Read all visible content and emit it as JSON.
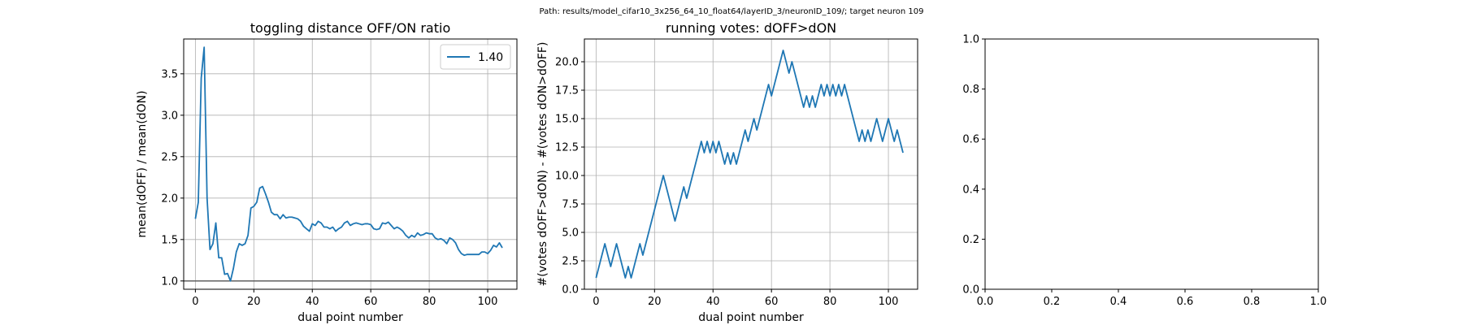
{
  "figure": {
    "suptitle": "Path: results/model_cifar10_3x256_64_10_float64/layerID_3/neuronID_109/; target neuron 109"
  },
  "chart_data": [
    {
      "type": "line",
      "title": "toggling distance OFF/ON ratio",
      "xlabel": "dual point number",
      "ylabel": "mean(dOFF) / mean(dON)",
      "xlim": [
        -4,
        110
      ],
      "ylim": [
        0.9,
        3.92
      ],
      "xticks": [
        0,
        20,
        40,
        60,
        80,
        100
      ],
      "xtick_labels": [
        "0",
        "20",
        "40",
        "60",
        "80",
        "100"
      ],
      "yticks": [
        1.0,
        1.5,
        2.0,
        2.5,
        3.0,
        3.5
      ],
      "ytick_labels": [
        "1.0",
        "1.5",
        "2.0",
        "2.5",
        "3.0",
        "3.5"
      ],
      "grid": true,
      "legend": "top-right",
      "hline": 1.0,
      "series": [
        {
          "name": "1.40",
          "color": "#1f77b4",
          "x": [
            0,
            1,
            2,
            3,
            4,
            5,
            6,
            7,
            8,
            9,
            10,
            11,
            12,
            13,
            14,
            15,
            16,
            17,
            18,
            19,
            20,
            21,
            22,
            23,
            24,
            25,
            26,
            27,
            28,
            29,
            30,
            31,
            32,
            33,
            34,
            35,
            36,
            37,
            38,
            39,
            40,
            41,
            42,
            43,
            44,
            45,
            46,
            47,
            48,
            49,
            50,
            51,
            52,
            53,
            54,
            55,
            56,
            57,
            58,
            59,
            60,
            61,
            62,
            63,
            64,
            65,
            66,
            67,
            68,
            69,
            70,
            71,
            72,
            73,
            74,
            75,
            76,
            77,
            78,
            79,
            80,
            81,
            82,
            83,
            84,
            85,
            86,
            87,
            88,
            89,
            90,
            91,
            92,
            93,
            94,
            95,
            96,
            97,
            98,
            99,
            100,
            101,
            102,
            103,
            104,
            105
          ],
          "values": [
            1.75,
            1.95,
            3.45,
            3.82,
            2.0,
            1.38,
            1.45,
            1.7,
            1.28,
            1.28,
            1.08,
            1.09,
            1.0,
            1.15,
            1.35,
            1.45,
            1.43,
            1.45,
            1.55,
            1.88,
            1.9,
            1.95,
            2.12,
            2.14,
            2.05,
            1.95,
            1.83,
            1.8,
            1.8,
            1.75,
            1.8,
            1.76,
            1.77,
            1.77,
            1.76,
            1.75,
            1.72,
            1.66,
            1.63,
            1.6,
            1.69,
            1.67,
            1.72,
            1.7,
            1.65,
            1.65,
            1.63,
            1.65,
            1.6,
            1.63,
            1.65,
            1.7,
            1.72,
            1.67,
            1.69,
            1.7,
            1.69,
            1.68,
            1.69,
            1.69,
            1.68,
            1.63,
            1.62,
            1.63,
            1.7,
            1.69,
            1.71,
            1.67,
            1.63,
            1.65,
            1.63,
            1.6,
            1.55,
            1.52,
            1.55,
            1.53,
            1.58,
            1.55,
            1.56,
            1.58,
            1.57,
            1.57,
            1.52,
            1.5,
            1.51,
            1.49,
            1.45,
            1.52,
            1.5,
            1.46,
            1.38,
            1.33,
            1.31,
            1.32,
            1.32,
            1.32,
            1.32,
            1.32,
            1.35,
            1.35,
            1.33,
            1.37,
            1.43,
            1.41,
            1.46,
            1.4
          ]
        }
      ]
    },
    {
      "type": "line",
      "title": "running votes: dOFF>dON",
      "xlabel": "dual point number",
      "ylabel": "#(votes dOFF>dON) - #(votes dON>dOFF)",
      "xlim": [
        -4,
        110
      ],
      "ylim": [
        0,
        22
      ],
      "xticks": [
        0,
        20,
        40,
        60,
        80,
        100
      ],
      "xtick_labels": [
        "0",
        "20",
        "40",
        "60",
        "80",
        "100"
      ],
      "yticks": [
        0.0,
        2.5,
        5.0,
        7.5,
        10.0,
        12.5,
        15.0,
        17.5,
        20.0
      ],
      "ytick_labels": [
        "0.0",
        "2.5",
        "5.0",
        "7.5",
        "10.0",
        "12.5",
        "15.0",
        "17.5",
        "20.0"
      ],
      "grid": true,
      "series": [
        {
          "color": "#1f77b4",
          "x": [
            0,
            1,
            2,
            3,
            4,
            5,
            6,
            7,
            8,
            9,
            10,
            11,
            12,
            13,
            14,
            15,
            16,
            17,
            18,
            19,
            20,
            21,
            22,
            23,
            24,
            25,
            26,
            27,
            28,
            29,
            30,
            31,
            32,
            33,
            34,
            35,
            36,
            37,
            38,
            39,
            40,
            41,
            42,
            43,
            44,
            45,
            46,
            47,
            48,
            49,
            50,
            51,
            52,
            53,
            54,
            55,
            56,
            57,
            58,
            59,
            60,
            61,
            62,
            63,
            64,
            65,
            66,
            67,
            68,
            69,
            70,
            71,
            72,
            73,
            74,
            75,
            76,
            77,
            78,
            79,
            80,
            81,
            82,
            83,
            84,
            85,
            86,
            87,
            88,
            89,
            90,
            91,
            92,
            93,
            94,
            95,
            96,
            97,
            98,
            99,
            100,
            101,
            102,
            103,
            104,
            105
          ],
          "values": [
            1,
            2,
            3,
            4,
            3,
            2,
            3,
            4,
            3,
            2,
            1,
            2,
            1,
            2,
            3,
            4,
            3,
            4,
            5,
            6,
            7,
            8,
            9,
            10,
            9,
            8,
            7,
            6,
            7,
            8,
            9,
            8,
            9,
            10,
            11,
            12,
            13,
            12,
            13,
            12,
            13,
            12,
            13,
            12,
            11,
            12,
            11,
            12,
            11,
            12,
            13,
            14,
            13,
            14,
            15,
            14,
            15,
            16,
            17,
            18,
            17,
            18,
            19,
            20,
            21,
            20,
            19,
            20,
            19,
            18,
            17,
            16,
            17,
            16,
            17,
            16,
            17,
            18,
            17,
            18,
            17,
            18,
            17,
            18,
            17,
            18,
            17,
            16,
            15,
            14,
            13,
            14,
            13,
            14,
            13,
            14,
            15,
            14,
            13,
            14,
            15,
            14,
            13,
            14,
            13,
            12
          ]
        }
      ]
    },
    {
      "type": "line",
      "title": "",
      "xlim": [
        0,
        1
      ],
      "ylim": [
        0,
        1
      ],
      "xticks": [
        0.0,
        0.2,
        0.4,
        0.6,
        0.8,
        1.0
      ],
      "xtick_labels": [
        "0.0",
        "0.2",
        "0.4",
        "0.6",
        "0.8",
        "1.0"
      ],
      "yticks": [
        0.0,
        0.2,
        0.4,
        0.6,
        0.8,
        1.0
      ],
      "ytick_labels": [
        "0.0",
        "0.2",
        "0.4",
        "0.6",
        "0.8",
        "1.0"
      ],
      "grid": false,
      "series": []
    }
  ]
}
